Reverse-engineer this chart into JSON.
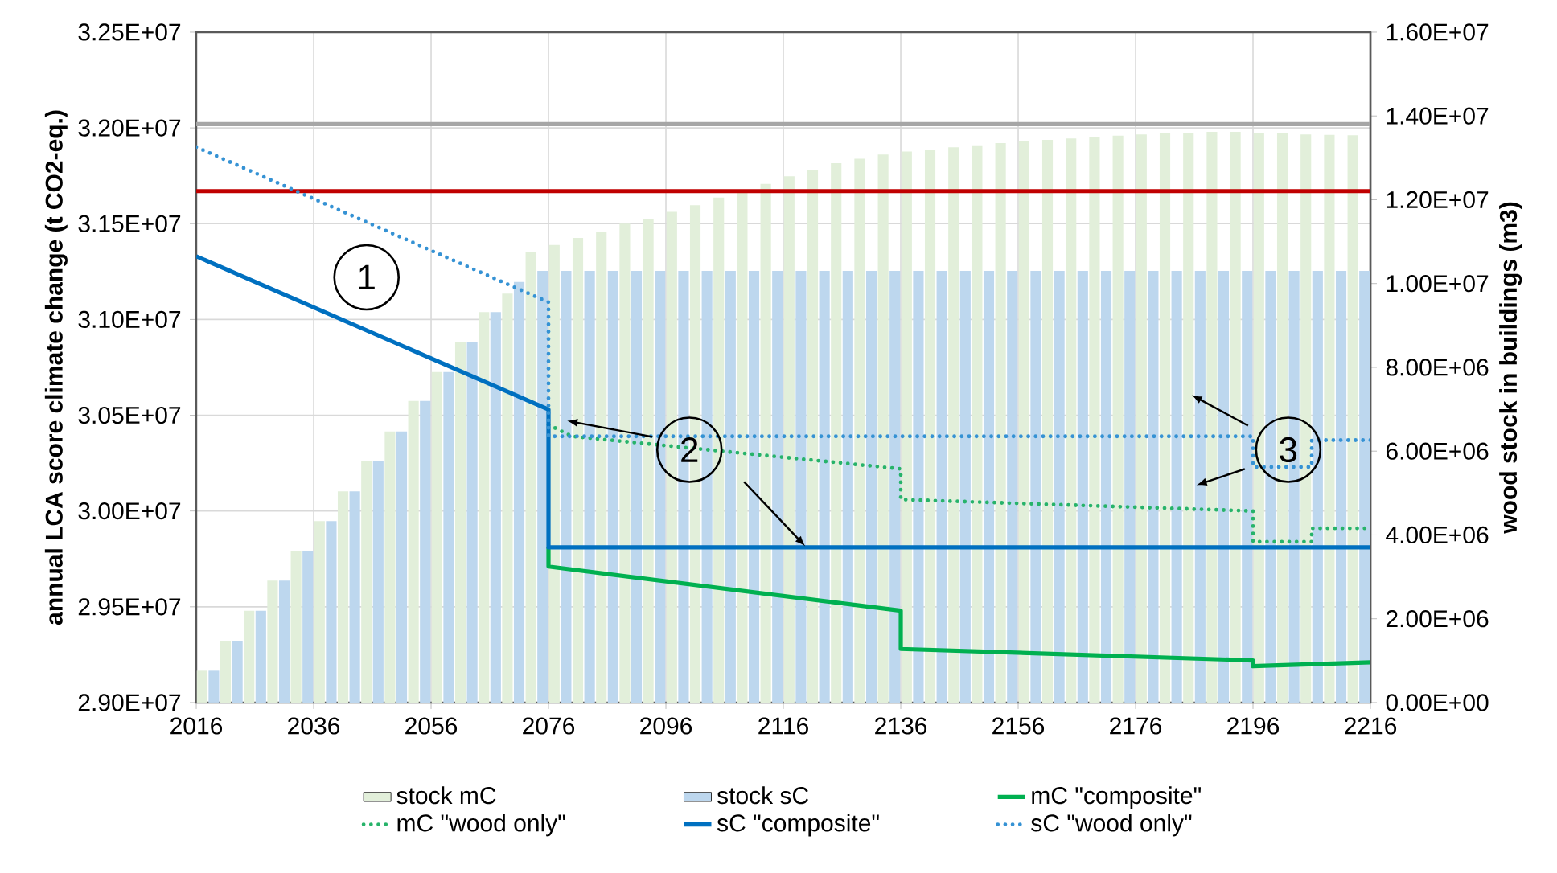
{
  "chart_data": {
    "type": "bar",
    "xlabel": null,
    "ylabel": "annual LCA score climate change (t CO2-eq.)",
    "y2label": "wood stock in buildings (m3)",
    "xlim": [
      2016,
      2216
    ],
    "xticks": [
      2016,
      2036,
      2056,
      2076,
      2096,
      2116,
      2136,
      2156,
      2176,
      2196,
      2216
    ],
    "ylim": [
      29000000,
      32500000
    ],
    "yticks": [
      {
        "value": 29000000,
        "label": "2.90E+07"
      },
      {
        "value": 29500000,
        "label": "2.95E+07"
      },
      {
        "value": 30000000,
        "label": "3.00E+07"
      },
      {
        "value": 30500000,
        "label": "3.05E+07"
      },
      {
        "value": 31000000,
        "label": "3.10E+07"
      },
      {
        "value": 31500000,
        "label": "3.15E+07"
      },
      {
        "value": 32000000,
        "label": "3.20E+07"
      },
      {
        "value": 32500000,
        "label": "3.25E+07"
      }
    ],
    "y2lim": [
      0,
      16000000
    ],
    "y2ticks": [
      {
        "value": 0,
        "label": "0.00E+00"
      },
      {
        "value": 2000000,
        "label": "2.00E+06"
      },
      {
        "value": 4000000,
        "label": "4.00E+06"
      },
      {
        "value": 6000000,
        "label": "6.00E+06"
      },
      {
        "value": 8000000,
        "label": "8.00E+06"
      },
      {
        "value": 10000000,
        "label": "1.00E+07"
      },
      {
        "value": 12000000,
        "label": "1.20E+07"
      },
      {
        "value": 14000000,
        "label": "1.40E+07"
      },
      {
        "value": 16000000,
        "label": "1.60E+07"
      }
    ],
    "grid": true,
    "legend": "bottom",
    "series": [
      {
        "name": "stock mC",
        "axis": "y2",
        "color": "#e2efda",
        "x": [
          2018,
          2022,
          2026,
          2030,
          2034,
          2038,
          2042,
          2046,
          2050,
          2054,
          2058,
          2062,
          2066,
          2070,
          2074,
          2078,
          2082,
          2086,
          2090,
          2094,
          2098,
          2102,
          2106,
          2110,
          2114,
          2118,
          2122,
          2126,
          2130,
          2134,
          2138,
          2142,
          2146,
          2150,
          2154,
          2158,
          2162,
          2166,
          2170,
          2174,
          2178,
          2182,
          2186,
          2190,
          2194,
          2198,
          2202,
          2206,
          2210,
          2214
        ],
        "values": [
          760000,
          1470000,
          2190000,
          2910000,
          3620000,
          4330000,
          5040000,
          5760000,
          6470000,
          7200000,
          7890000,
          8610000,
          9320000,
          9760000,
          10760000,
          10920000,
          11090000,
          11240000,
          11430000,
          11540000,
          11710000,
          11870000,
          12050000,
          12210000,
          12380000,
          12560000,
          12720000,
          12870000,
          12980000,
          13080000,
          13150000,
          13200000,
          13250000,
          13300000,
          13350000,
          13400000,
          13430000,
          13460000,
          13500000,
          13530000,
          13560000,
          13580000,
          13600000,
          13620000,
          13620000,
          13600000,
          13580000,
          13560000,
          13550000,
          13540000
        ]
      },
      {
        "name": "stock sC",
        "axis": "y2",
        "color": "#bdd7ee",
        "x": [
          2018,
          2022,
          2026,
          2030,
          2034,
          2038,
          2042,
          2046,
          2050,
          2054,
          2058,
          2062,
          2066,
          2070,
          2074,
          2078,
          2082,
          2086,
          2090,
          2094,
          2098,
          2102,
          2106,
          2110,
          2114,
          2118,
          2122,
          2126,
          2130,
          2134,
          2138,
          2142,
          2146,
          2150,
          2154,
          2158,
          2162,
          2166,
          2170,
          2174,
          2178,
          2182,
          2186,
          2190,
          2194,
          2198,
          2202,
          2206,
          2210,
          2214
        ],
        "values": [
          760000,
          1470000,
          2190000,
          2910000,
          3620000,
          4330000,
          5040000,
          5760000,
          6470000,
          7200000,
          7890000,
          8610000,
          9320000,
          10040000,
          10300000,
          10300000,
          10300000,
          10300000,
          10300000,
          10300000,
          10300000,
          10300000,
          10300000,
          10300000,
          10300000,
          10300000,
          10300000,
          10300000,
          10300000,
          10300000,
          10300000,
          10300000,
          10300000,
          10300000,
          10300000,
          10300000,
          10300000,
          10300000,
          10300000,
          10300000,
          10300000,
          10300000,
          10300000,
          10300000,
          10300000,
          10300000,
          10300000,
          10300000,
          10300000,
          10300000
        ]
      },
      {
        "name": "mC \"composite\"",
        "type": "line",
        "line_style": "solid",
        "color": "#00b050",
        "x": [
          2076,
          2076,
          2136,
          2136,
          2196,
          2196,
          2216
        ],
        "values": [
          29810000,
          29710000,
          29480000,
          29280000,
          29220000,
          29190000,
          29210000
        ]
      },
      {
        "name": "mC \"wood only\"",
        "type": "line",
        "line_style": "dotted",
        "color": "#27b36a",
        "x": [
          2076,
          2080,
          2136,
          2136,
          2196,
          2196,
          2206,
          2206,
          2216
        ],
        "values": [
          30450000,
          30390000,
          30220000,
          30060000,
          30000000,
          29840000,
          29840000,
          29910000,
          29910000
        ]
      },
      {
        "name": "sC \"composite\"",
        "type": "line",
        "line_style": "solid",
        "color": "#0070c0",
        "x": [
          2016,
          2076,
          2076,
          2216
        ],
        "values": [
          31330000,
          30530000,
          29810000,
          29810000
        ]
      },
      {
        "name": "sC \"wood only\"",
        "type": "line",
        "line_style": "dotted",
        "color": "#3592d4",
        "x": [
          2016,
          2076,
          2076,
          2196,
          2196,
          2206,
          2206,
          2216
        ],
        "values": [
          31900000,
          31090000,
          30390000,
          30390000,
          30230000,
          30230000,
          30370000,
          30370000
        ]
      }
    ],
    "ref_lines": [
      {
        "axis": "y",
        "value": 32020000,
        "color": "#a6a6a6"
      },
      {
        "axis": "y",
        "value": 31670000,
        "color": "#c00000"
      }
    ],
    "annotations": [
      {
        "text": "1",
        "x": 2045,
        "y": 31220000
      },
      {
        "text": "2",
        "x": 2100,
        "y": 30320000
      },
      {
        "text": "3",
        "x": 2202,
        "y": 30320000
      }
    ]
  }
}
